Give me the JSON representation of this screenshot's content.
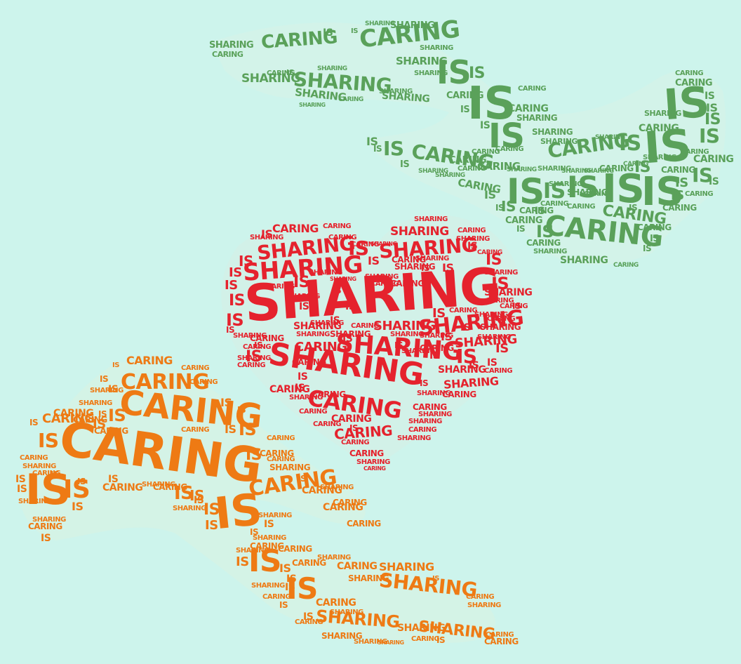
{
  "colors": {
    "background": "#cdf4ec",
    "green": "#5aa15a",
    "red": "#e5222d",
    "orange": "#ee7a14"
  },
  "words": {
    "sharing": "SHARING",
    "caring": "CARING",
    "is": "IS"
  },
  "clusters": [
    {
      "name": "dove-wordcloud",
      "color": "green"
    },
    {
      "name": "heart-wordcloud",
      "color": "red"
    },
    {
      "name": "hand-wordcloud",
      "color": "orange"
    }
  ]
}
